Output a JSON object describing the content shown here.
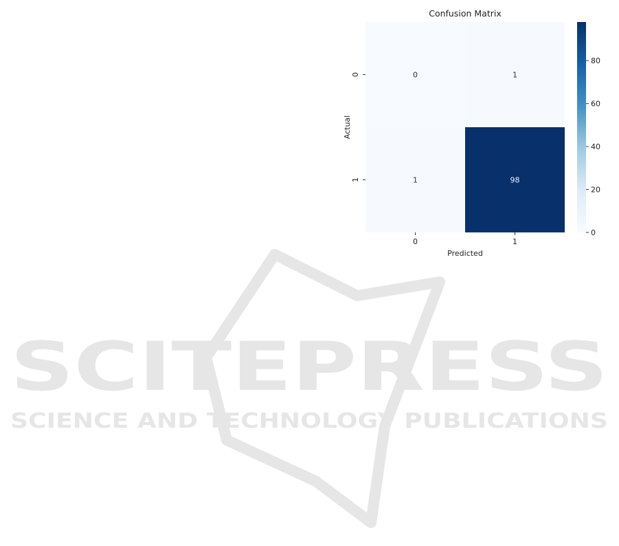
{
  "chart_data": {
    "type": "heatmap",
    "title": "Confusion Matrix",
    "xlabel": "Predicted",
    "ylabel": "Actual",
    "x_categories": [
      "0",
      "1"
    ],
    "y_categories": [
      "0",
      "1"
    ],
    "values": [
      [
        0,
        1
      ],
      [
        1,
        98
      ]
    ],
    "colormap": "Blues",
    "colorbar": {
      "range": [
        0,
        98
      ],
      "ticks": [
        0,
        20,
        40,
        60,
        80
      ]
    },
    "annotations": true
  },
  "watermark": {
    "logo_text": "SCITEPRESS",
    "logo_subtext": "SCIENCE AND TECHNOLOGY PUBLICATIONS",
    "color": "#e6e6e6"
  }
}
